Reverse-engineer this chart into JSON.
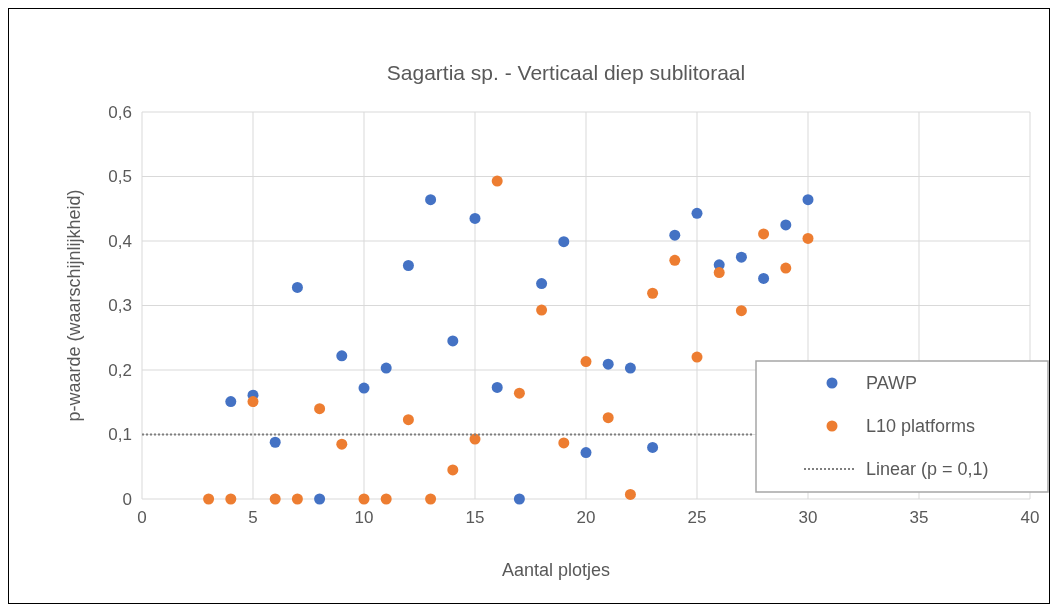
{
  "chart_data": {
    "type": "scatter",
    "title": "Sagartia sp. - Verticaal diep sublitoraal",
    "xlabel": "Aantal plotjes",
    "ylabel": "p-waarde (waarschijnlijkheid)",
    "xlim": [
      0,
      40
    ],
    "xticks": [
      0,
      5,
      10,
      15,
      20,
      25,
      30,
      35,
      40
    ],
    "ylim": [
      0,
      0.6
    ],
    "yticks": [
      {
        "value": 0,
        "label": "0"
      },
      {
        "value": 0.1,
        "label": "0,1"
      },
      {
        "value": 0.2,
        "label": "0,2"
      },
      {
        "value": 0.3,
        "label": "0,3"
      },
      {
        "value": 0.4,
        "label": "0,4"
      },
      {
        "value": 0.5,
        "label": "0,5"
      },
      {
        "value": 0.6,
        "label": "0,6"
      }
    ],
    "grid": true,
    "legend": "right",
    "marker": "circle",
    "series": [
      {
        "name": "PAWP",
        "color": "#4472c4",
        "x": [
          4,
          5,
          6,
          7,
          8,
          9,
          10,
          11,
          12,
          13,
          14,
          15,
          16,
          17,
          18,
          19,
          20,
          21,
          22,
          23,
          24,
          25,
          26,
          27,
          28,
          29,
          30
        ],
        "values": [
          0.151,
          0.161,
          0.088,
          0.328,
          0,
          0.222,
          0.172,
          0.203,
          0.362,
          0.464,
          0.245,
          0.435,
          0.173,
          0,
          0.334,
          0.399,
          0.072,
          0.209,
          0.203,
          0.08,
          0.409,
          0.443,
          0.363,
          0.375,
          0.342,
          0.425,
          0.464
        ]
      },
      {
        "name": "L10 platforms",
        "color": "#ed7d31",
        "x": [
          3,
          4,
          5,
          6,
          7,
          8,
          9,
          10,
          11,
          12,
          13,
          14,
          15,
          16,
          17,
          18,
          19,
          20,
          21,
          22,
          23,
          24,
          25,
          26,
          27,
          28,
          29,
          30
        ],
        "values": [
          0,
          0,
          0.151,
          0,
          0,
          0.14,
          0.085,
          0,
          0,
          0.123,
          0,
          0.045,
          0.093,
          0.493,
          0.164,
          0.293,
          0.087,
          0.213,
          0.126,
          0.007,
          0.319,
          0.37,
          0.22,
          0.351,
          0.292,
          0.411,
          0.358,
          0.404
        ]
      },
      {
        "name": "Linear (p = 0,1)",
        "type": "line",
        "color": "#7f7f7f",
        "line_style": "dotted",
        "marker": "none",
        "x": [
          0,
          27.5
        ],
        "values": [
          0.1,
          0.1
        ]
      }
    ]
  }
}
